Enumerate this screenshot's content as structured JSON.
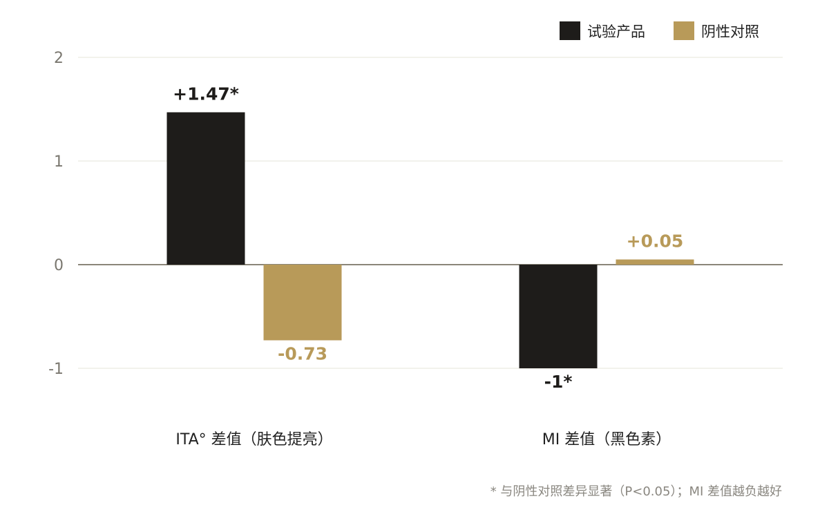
{
  "chart_data": {
    "type": "bar",
    "categories": [
      "ITA° 差值（肤色提亮）",
      "MI 差值（黑色素）"
    ],
    "series": [
      {
        "name": "试验产品",
        "values": [
          1.47,
          -1
        ],
        "labels": [
          "+1.47*",
          "-1*"
        ]
      },
      {
        "name": "阴性对照",
        "values": [
          -0.73,
          0.05
        ],
        "labels": [
          "-0.73",
          "+0.05"
        ]
      }
    ],
    "yticks": [
      "2",
      "1",
      "0",
      "-1"
    ],
    "ylim": [
      -1,
      2
    ],
    "legend_position": "top-right",
    "grid": true,
    "footnote": "* 与阴性对照差异显著（P<0.05）；MI 差值越负越好"
  },
  "colors": {
    "series_1": "#1e1c1a",
    "series_2": "#b89a59",
    "grid": "#e6e4d8",
    "zero_line": "#8a8679",
    "tick_text": "#7a776f",
    "category_text": "#222222",
    "footnote_text": "#8a8780"
  }
}
